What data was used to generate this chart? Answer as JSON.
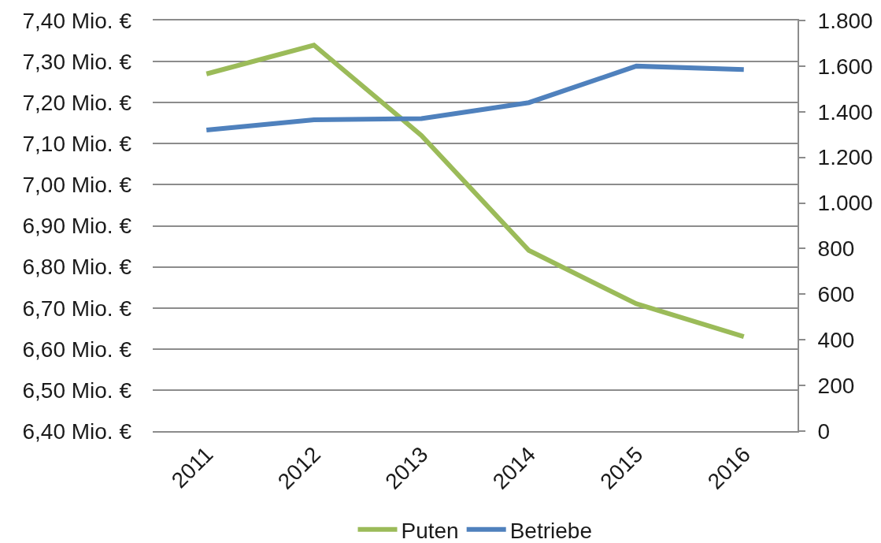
{
  "chart_data": {
    "type": "line",
    "categories": [
      "2011",
      "2012",
      "2013",
      "2014",
      "2015",
      "2016"
    ],
    "series": [
      {
        "name": "Puten",
        "color": "#9bbb59",
        "values": [
          7.27,
          7.34,
          7.12,
          6.84,
          6.71,
          6.63
        ]
      },
      {
        "name": "Betriebe",
        "color": "#4f81bd",
        "axis": "y2",
        "values": [
          1320,
          1365,
          1370,
          1440,
          1600,
          1585
        ]
      }
    ],
    "ylim": [
      6.4,
      7.4
    ],
    "yticks": [
      {
        "value": 6.4,
        "label": "6,40 Mio. €"
      },
      {
        "value": 6.5,
        "label": "6,50 Mio. €"
      },
      {
        "value": 6.6,
        "label": "6,60 Mio. €"
      },
      {
        "value": 6.7,
        "label": "6,70 Mio. €"
      },
      {
        "value": 6.8,
        "label": "6,80 Mio. €"
      },
      {
        "value": 6.9,
        "label": "6,90 Mio. €"
      },
      {
        "value": 7.0,
        "label": "7,00 Mio. €"
      },
      {
        "value": 7.1,
        "label": "7,10 Mio. €"
      },
      {
        "value": 7.2,
        "label": "7,20 Mio. €"
      },
      {
        "value": 7.3,
        "label": "7,30 Mio. €"
      },
      {
        "value": 7.4,
        "label": "7,40 Mio. €"
      }
    ],
    "y2lim": [
      0,
      1800
    ],
    "y2ticks": [
      0,
      200,
      400,
      600,
      800,
      {
        "value": 1000,
        "label": "1.000"
      },
      {
        "value": 1200,
        "label": "1.200"
      },
      {
        "value": 1400,
        "label": "1.400"
      },
      {
        "value": 1600,
        "label": "1.600"
      },
      {
        "value": 1800,
        "label": "1.800"
      }
    ],
    "grid": "y",
    "legend": "bottom",
    "marker": "none",
    "line_style": "solid"
  }
}
